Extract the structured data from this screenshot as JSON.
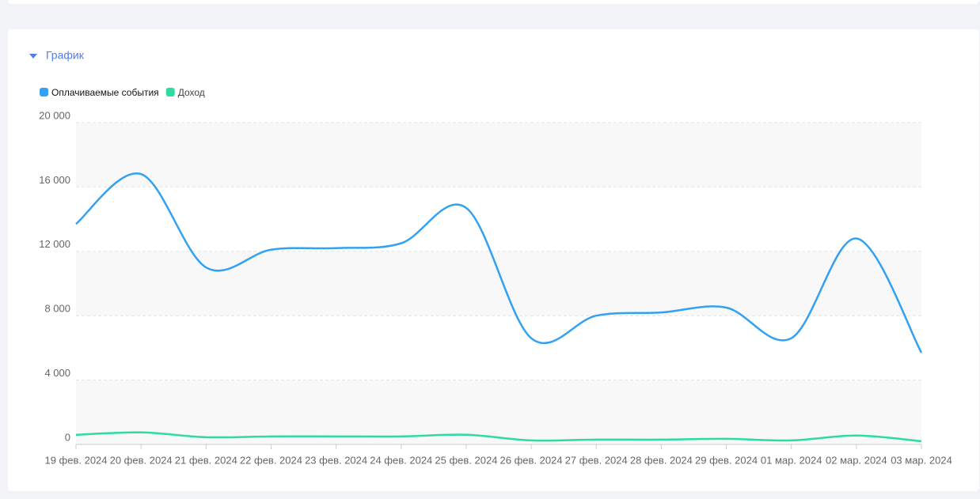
{
  "section_title": "График",
  "chart_data": {
    "type": "line",
    "categories": [
      "19 фев. 2024",
      "20 фев. 2024",
      "21 фев. 2024",
      "22 фев. 2024",
      "23 фев. 2024",
      "24 фев. 2024",
      "25 фев. 2024",
      "26 фев. 2024",
      "27 фев. 2024",
      "28 фев. 2024",
      "29 фев. 2024",
      "01 мар. 2024",
      "02 мар. 2024",
      "03 мар. 2024"
    ],
    "series": [
      {
        "name": "Оплачиваемые события",
        "color": "#33a1f2",
        "values": [
          13700,
          16800,
          11000,
          12100,
          12200,
          12500,
          14700,
          6600,
          8000,
          8200,
          8500,
          6600,
          12800,
          5700
        ]
      },
      {
        "name": "Доход",
        "color": "#2edc9f",
        "values": [
          600,
          750,
          450,
          500,
          500,
          500,
          600,
          250,
          300,
          300,
          350,
          250,
          550,
          200
        ]
      }
    ],
    "ylim": [
      0,
      20000
    ],
    "yticks": [
      0,
      {
        "value": 4000,
        "label": "4 000"
      },
      {
        "value": 8000,
        "label": "8 000"
      },
      {
        "value": 12000,
        "label": "12 000"
      },
      {
        "value": 16000,
        "label": "16 000"
      },
      {
        "value": 20000,
        "label": "20 000"
      }
    ],
    "grid": true
  }
}
